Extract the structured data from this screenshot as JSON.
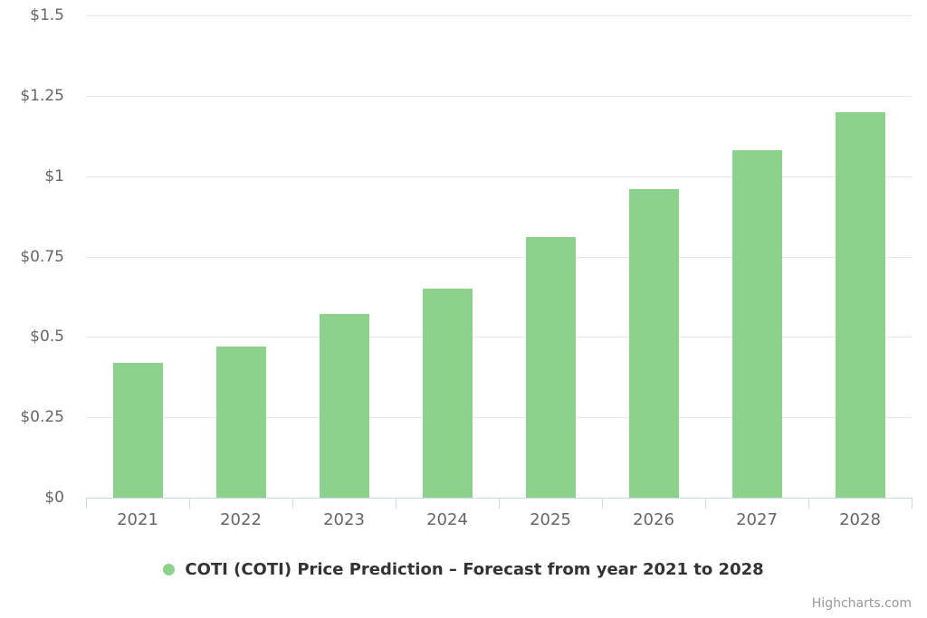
{
  "chart_data": {
    "type": "bar",
    "title": "",
    "categories": [
      "2021",
      "2022",
      "2023",
      "2024",
      "2025",
      "2026",
      "2027",
      "2028"
    ],
    "series": [
      {
        "name": "COTI (COTI) Price Prediction – Forecast from year 2021 to 2028",
        "values": [
          0.42,
          0.47,
          0.57,
          0.65,
          0.81,
          0.96,
          1.08,
          1.2
        ]
      }
    ],
    "xlabel": "",
    "ylabel": "",
    "ylim": [
      0,
      1.5
    ],
    "grid": true,
    "legend_position": "bottom-center",
    "yticks": [
      {
        "value": 0,
        "label": "$0"
      },
      {
        "value": 0.25,
        "label": "$0.25"
      },
      {
        "value": 0.5,
        "label": "$0.5"
      },
      {
        "value": 0.75,
        "label": "$0.75"
      },
      {
        "value": 1,
        "label": "$1"
      },
      {
        "value": 1.25,
        "label": "$1.25"
      },
      {
        "value": 1.5,
        "label": "$1.5"
      }
    ],
    "colors": {
      "bar": "#8cd28d",
      "grid_line": "#e6e6e6",
      "axis_line": "#ccd6eb",
      "tick": "#ccd6eb",
      "axis_label": "#666666",
      "legend_text": "#333333",
      "credit_text": "#999999"
    }
  },
  "legend": {
    "label": "COTI (COTI) Price Prediction – Forecast from year 2021 to 2028"
  },
  "credits": {
    "label": "Highcharts.com"
  }
}
